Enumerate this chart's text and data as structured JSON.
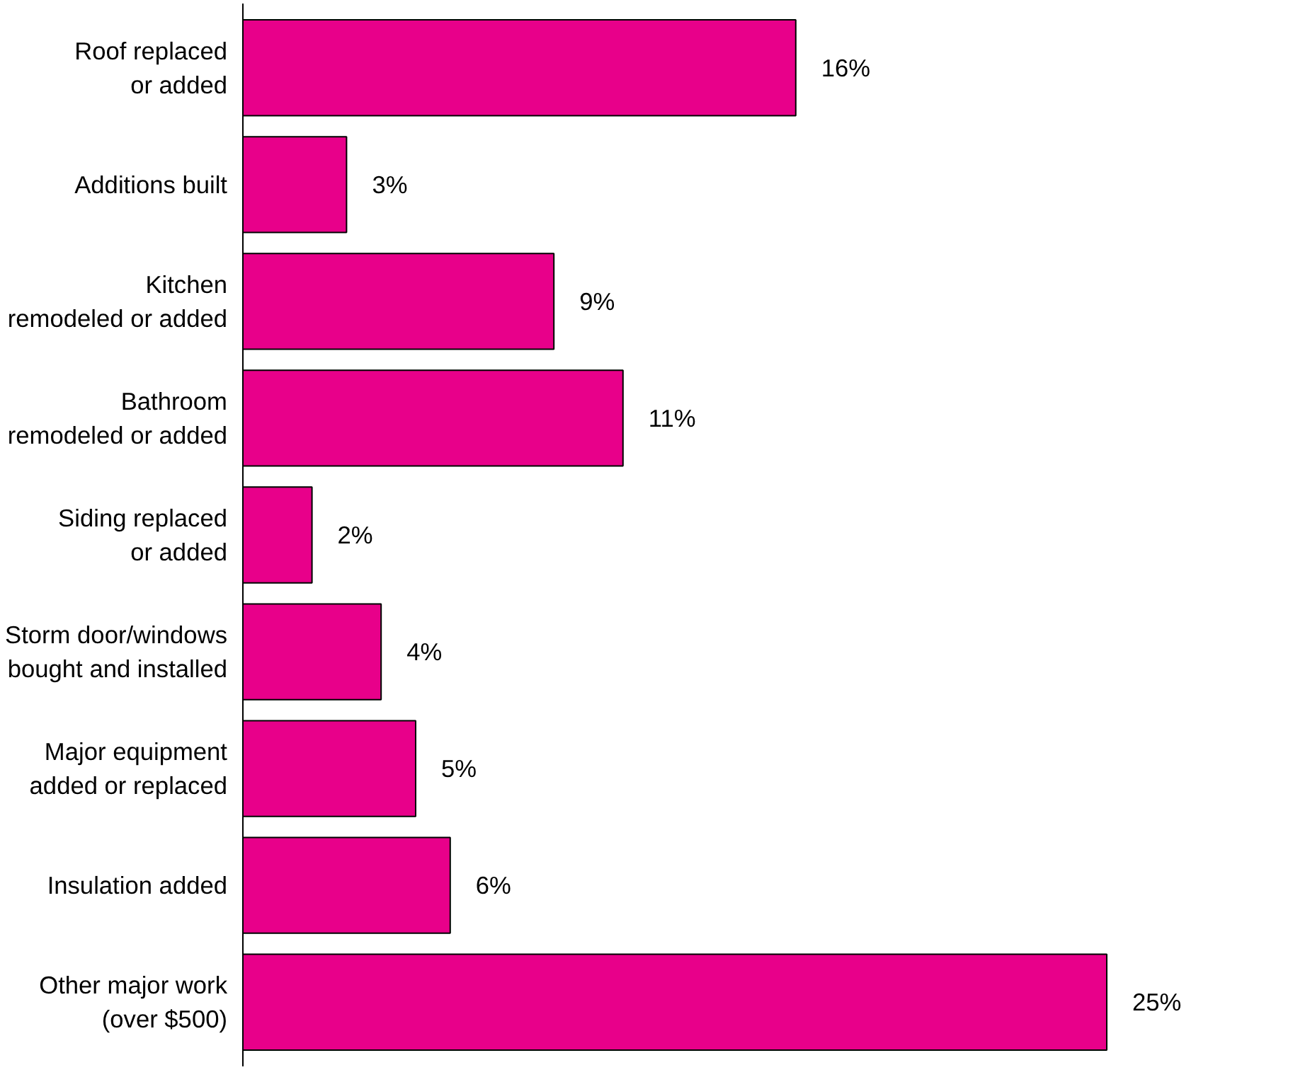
{
  "chart_data": {
    "type": "bar",
    "orientation": "horizontal",
    "categories": [
      "Roof replaced\nor added",
      "Additions built",
      "Kitchen\nremodeled or added",
      "Bathroom\nremodeled or added",
      "Siding replaced\nor added",
      "Storm door/windows\nbought and installed",
      "Major equipment\nadded or replaced",
      "Insulation added",
      "Other major work\n(over $500)"
    ],
    "values": [
      16,
      3,
      9,
      11,
      2,
      4,
      5,
      6,
      25
    ],
    "value_labels": [
      "16%",
      "3%",
      "9%",
      "11%",
      "2%",
      "4%",
      "5%",
      "6%",
      "25%"
    ],
    "color": "#e8008a",
    "grid": false
  }
}
